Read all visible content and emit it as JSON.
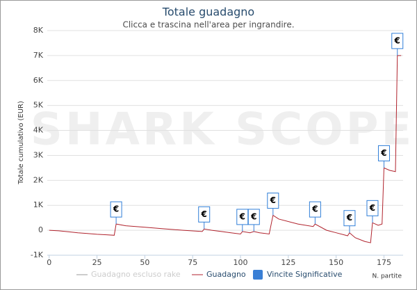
{
  "chart_data": {
    "type": "line",
    "title": "Totale guadagno",
    "subtitle": "Clicca e trascina nell'area per ingrandire.",
    "watermark": "SHARK SCOPE",
    "xlabel": "N. partite",
    "ylabel": "Totale cumulativo (EUR)",
    "xlim": [
      -1,
      185
    ],
    "xticks": [
      0,
      25,
      50,
      75,
      100,
      125,
      150,
      175
    ],
    "ylim": [
      -1000,
      8000
    ],
    "yticks": [
      {
        "value": -1000,
        "label": "-1K"
      },
      0,
      {
        "value": 1000,
        "label": "1K"
      },
      {
        "value": 2000,
        "label": "2K"
      },
      {
        "value": 3000,
        "label": "3K"
      },
      {
        "value": 4000,
        "label": "4K"
      },
      {
        "value": 5000,
        "label": "5K"
      },
      {
        "value": 6000,
        "label": "6K"
      },
      {
        "value": 7000,
        "label": "7K"
      },
      {
        "value": 8000,
        "label": "8K"
      }
    ],
    "grid": true,
    "series": [
      {
        "name": "Guadagno escluso rake",
        "color": "#cccccc",
        "visible": false
      },
      {
        "name": "Guadagno",
        "color": "#b0222c",
        "visible": true,
        "x": [
          0,
          5,
          10,
          15,
          20,
          25,
          30,
          34,
          35,
          40,
          50,
          60,
          70,
          80,
          81,
          85,
          90,
          95,
          100,
          101,
          105,
          107,
          110,
          115,
          117,
          120,
          130,
          138,
          139,
          145,
          150,
          156,
          157,
          160,
          165,
          168,
          169,
          172,
          174,
          175,
          178,
          181,
          182,
          184
        ],
        "values": [
          0,
          -20,
          -60,
          -100,
          -130,
          -160,
          -180,
          -200,
          250,
          180,
          120,
          60,
          0,
          -50,
          50,
          0,
          -50,
          -100,
          -150,
          -50,
          -100,
          -50,
          -100,
          -150,
          600,
          450,
          250,
          150,
          250,
          0,
          -100,
          -220,
          -100,
          -300,
          -450,
          -500,
          300,
          200,
          250,
          2500,
          2400,
          2350,
          7000,
          7000
        ]
      }
    ],
    "flags": {
      "name": "Vincite Significative",
      "color": "#3a7fd5",
      "marker_label": "€",
      "x": [
        35,
        81,
        101,
        107,
        117,
        139,
        157,
        169,
        175,
        182
      ],
      "values": [
        250,
        50,
        -50,
        -50,
        600,
        250,
        -100,
        300,
        2500,
        7000
      ]
    }
  }
}
